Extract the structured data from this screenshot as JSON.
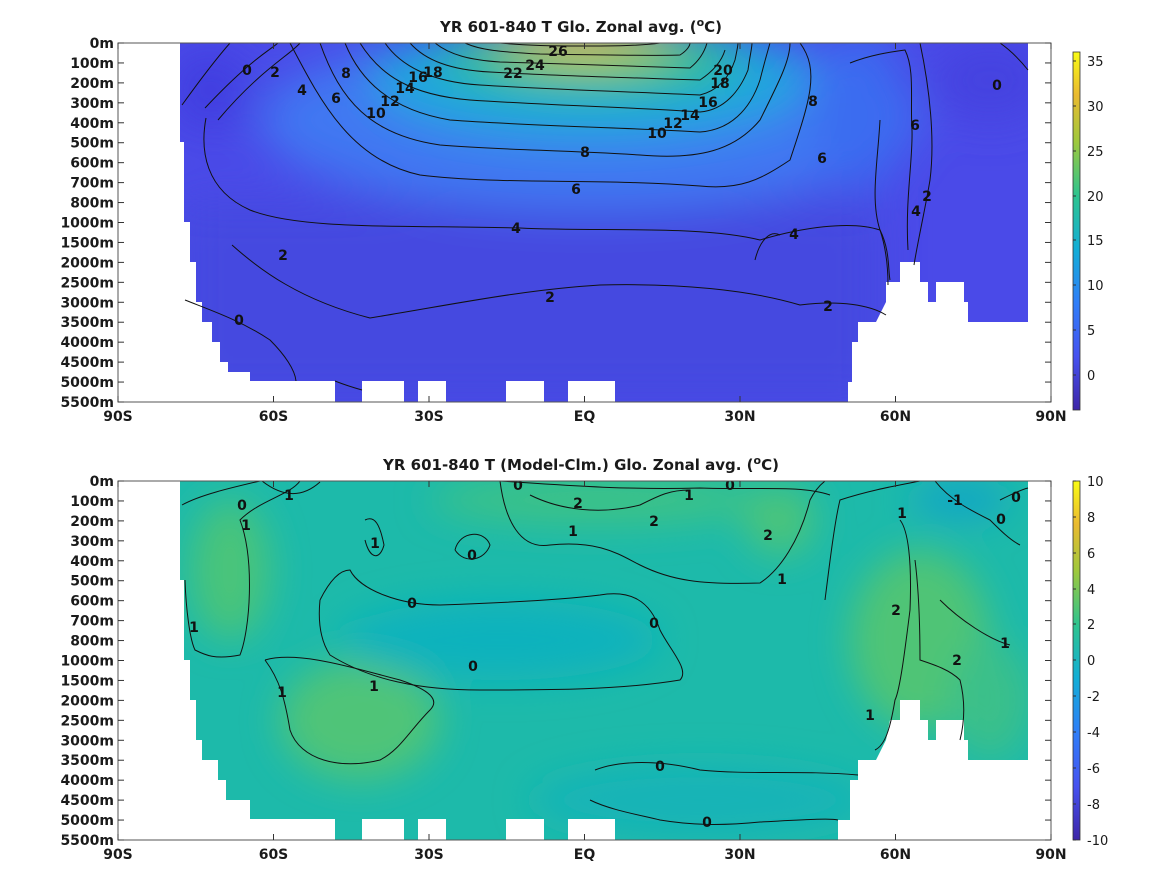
{
  "charts": [
    {
      "title_main": "YR 601-840 T Glo. Zonal avg. (",
      "title_sup": "o",
      "title_end": "C)",
      "colorbar_ticks": [
        "35",
        "30",
        "25",
        "20",
        "15",
        "10",
        "5",
        "0"
      ]
    },
    {
      "title_main": "YR 601-840 T (Model-Clm.) Glo. Zonal avg. (",
      "title_sup": "o",
      "title_end": "C)",
      "colorbar_ticks": [
        "10",
        "8",
        "6",
        "4",
        "2",
        "0",
        "-2",
        "-4",
        "-6",
        "-8",
        "-10"
      ]
    }
  ],
  "x_tick_labels": [
    "90S",
    "60S",
    "30S",
    "EQ",
    "30N",
    "60N",
    "90N"
  ],
  "y_tick_labels": [
    "0m",
    "100m",
    "200m",
    "300m",
    "400m",
    "500m",
    "600m",
    "700m",
    "800m",
    "1000m",
    "1500m",
    "2000m",
    "2500m",
    "3000m",
    "3500m",
    "4000m",
    "4500m",
    "5000m",
    "5500m"
  ],
  "chart_data": [
    {
      "type": "heatmap",
      "title": "YR 601-840 T Glo. Zonal avg. (oC)",
      "x": [
        "90S",
        "60S",
        "30S",
        "EQ",
        "30N",
        "60N",
        "90N"
      ],
      "y": [
        "0m",
        "100m",
        "200m",
        "300m",
        "400m",
        "500m",
        "600m",
        "700m",
        "800m",
        "1000m",
        "1500m",
        "2000m",
        "2500m",
        "3000m",
        "3500m",
        "4000m",
        "4500m",
        "5000m",
        "5500m"
      ],
      "colorbar_range": [
        -4,
        36
      ],
      "contour_labels": [
        {
          "value": 26,
          "lat": 0,
          "depth": "0m"
        },
        {
          "value": 24,
          "lat": -6,
          "depth": "100m"
        },
        {
          "value": 22,
          "lat": -12,
          "depth": "100m"
        },
        {
          "value": 20,
          "lat": 25,
          "depth": "100m"
        },
        {
          "value": 18,
          "lat": -32,
          "depth": "100m"
        },
        {
          "value": 18,
          "lat": 27,
          "depth": "200m"
        },
        {
          "value": 16,
          "lat": -33,
          "depth": "200m"
        },
        {
          "value": 16,
          "lat": 23,
          "depth": "300m"
        },
        {
          "value": 14,
          "lat": -35,
          "depth": "200m"
        },
        {
          "value": 14,
          "lat": 21,
          "depth": "400m"
        },
        {
          "value": 12,
          "lat": -38,
          "depth": "300m"
        },
        {
          "value": 12,
          "lat": 18,
          "depth": "400m"
        },
        {
          "value": 10,
          "lat": -40,
          "depth": "400m"
        },
        {
          "value": 10,
          "lat": 15,
          "depth": "500m"
        },
        {
          "value": 8,
          "lat": -46,
          "depth": "100m"
        },
        {
          "value": 8,
          "lat": 0,
          "depth": "500m"
        },
        {
          "value": 8,
          "lat": 45,
          "depth": "300m"
        },
        {
          "value": 6,
          "lat": -52,
          "depth": "300m"
        },
        {
          "value": 6,
          "lat": -2,
          "depth": "700m"
        },
        {
          "value": 6,
          "lat": 46,
          "depth": "600m"
        },
        {
          "value": 6,
          "lat": 63,
          "depth": "400m"
        },
        {
          "value": 4,
          "lat": -56,
          "depth": "200m"
        },
        {
          "value": 4,
          "lat": -13,
          "depth": "1000m"
        },
        {
          "value": 4,
          "lat": 40,
          "depth": "1000m"
        },
        {
          "value": 4,
          "lat": 63,
          "depth": "800m"
        },
        {
          "value": 2,
          "lat": -61,
          "depth": "100m"
        },
        {
          "value": 2,
          "lat": -59,
          "depth": "2000m"
        },
        {
          "value": 2,
          "lat": -7,
          "depth": "2500m"
        },
        {
          "value": 2,
          "lat": 47,
          "depth": "3000m"
        },
        {
          "value": 2,
          "lat": 66,
          "depth": "700m"
        },
        {
          "value": 0,
          "lat": -66,
          "depth": "100m"
        },
        {
          "value": 0,
          "lat": -68,
          "depth": "3500m"
        },
        {
          "value": 0,
          "lat": 79,
          "depth": "200m"
        }
      ]
    },
    {
      "type": "heatmap",
      "title": "YR 601-840 T (Model-Clm.) Glo. Zonal avg. (oC)",
      "x": [
        "90S",
        "60S",
        "30S",
        "EQ",
        "30N",
        "60N",
        "90N"
      ],
      "y": [
        "0m",
        "100m",
        "200m",
        "300m",
        "400m",
        "500m",
        "600m",
        "700m",
        "800m",
        "1000m",
        "1500m",
        "2000m",
        "2500m",
        "3000m",
        "3500m",
        "4000m",
        "4500m",
        "5000m",
        "5500m"
      ],
      "colorbar_range": [
        -10,
        10
      ],
      "contour_labels": [
        {
          "value": 0,
          "lat": -64,
          "depth": "100m"
        },
        {
          "value": 1,
          "lat": -58,
          "depth": "100m"
        },
        {
          "value": 1,
          "lat": -64,
          "depth": "200m"
        },
        {
          "value": 1,
          "lat": -40,
          "depth": "300m"
        },
        {
          "value": 0,
          "lat": -22,
          "depth": "400m"
        },
        {
          "value": 0,
          "lat": -12,
          "depth": "0m"
        },
        {
          "value": 2,
          "lat": -1,
          "depth": "100m"
        },
        {
          "value": 2,
          "lat": 14,
          "depth": "200m"
        },
        {
          "value": 1,
          "lat": -2,
          "depth": "300m"
        },
        {
          "value": 1,
          "lat": 21,
          "depth": "100m"
        },
        {
          "value": 0,
          "lat": 29,
          "depth": "0m"
        },
        {
          "value": 2,
          "lat": 35,
          "depth": "300m"
        },
        {
          "value": 1,
          "lat": 38,
          "depth": "500m"
        },
        {
          "value": 1,
          "lat": 61,
          "depth": "200m"
        },
        {
          "value": -1,
          "lat": 72,
          "depth": "100m"
        },
        {
          "value": 0,
          "lat": 82,
          "depth": "100m"
        },
        {
          "value": 0,
          "lat": 80,
          "depth": "200m"
        },
        {
          "value": 0,
          "lat": -33,
          "depth": "600m"
        },
        {
          "value": 0,
          "lat": 13,
          "depth": "700m"
        },
        {
          "value": 0,
          "lat": -22,
          "depth": "1000m"
        },
        {
          "value": 1,
          "lat": -77,
          "depth": "700m"
        },
        {
          "value": 1,
          "lat": -41,
          "depth": "1500m"
        },
        {
          "value": 1,
          "lat": -60,
          "depth": "2000m"
        },
        {
          "value": 2,
          "lat": 60,
          "depth": "600m"
        },
        {
          "value": 2,
          "lat": 65,
          "depth": "1000m"
        },
        {
          "value": 1,
          "lat": 81,
          "depth": "800m"
        },
        {
          "value": 1,
          "lat": 52,
          "depth": "2500m"
        },
        {
          "value": 0,
          "lat": 14,
          "depth": "4000m"
        },
        {
          "value": 0,
          "lat": 23,
          "depth": "5000m"
        }
      ]
    }
  ]
}
